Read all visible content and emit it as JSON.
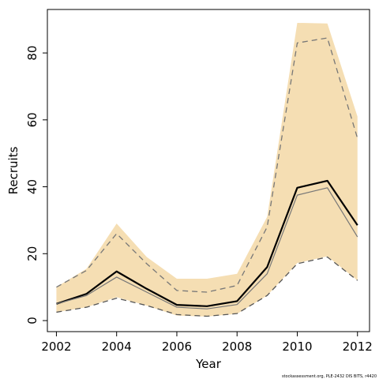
{
  "chart_data": {
    "type": "line",
    "title": "",
    "xlabel": "Year",
    "ylabel": "Recruits",
    "xlim": [
      2001.7,
      2012.4
    ],
    "ylim": [
      -3.3,
      93
    ],
    "x_ticks": [
      2002,
      2004,
      2006,
      2008,
      2010,
      2012
    ],
    "y_ticks": [
      0,
      20,
      40,
      60,
      80
    ],
    "grid": false,
    "legend": "none",
    "x": [
      2002,
      2003,
      2004,
      2005,
      2006,
      2007,
      2008,
      2009,
      2010,
      2011,
      2012
    ],
    "band": {
      "color": "#f5deb3",
      "lower": [
        2.5,
        4.0,
        7.0,
        4.5,
        1.5,
        1.2,
        2.0,
        7.5,
        17.2,
        19.2,
        12.0
      ],
      "upper": [
        10.0,
        15.5,
        29.0,
        19.0,
        12.5,
        12.5,
        14.0,
        31.0,
        89.0,
        88.8,
        61.0
      ]
    },
    "series": [
      {
        "values": [
          5.0,
          8.0,
          14.7,
          9.5,
          4.7,
          4.3,
          5.8,
          16.0,
          39.7,
          41.8,
          28.5
        ],
        "color": "#000000",
        "style": "solid-thick"
      },
      {
        "values": [
          5.0,
          7.5,
          13.0,
          8.5,
          4.0,
          3.5,
          4.8,
          14.0,
          37.5,
          39.7,
          25.0
        ],
        "color": "#777777",
        "style": "solid-thin"
      },
      {
        "values": [
          10.0,
          15.0,
          26.0,
          17.0,
          9.0,
          8.5,
          10.5,
          28.0,
          83.0,
          84.5,
          54.5
        ],
        "color": "#777777",
        "style": "dashed"
      },
      {
        "values": [
          2.5,
          4.0,
          6.7,
          4.5,
          1.8,
          1.3,
          2.1,
          7.5,
          17.0,
          19.0,
          12.0
        ],
        "color": "#555555",
        "style": "dashed"
      }
    ],
    "credit": "stockassessment.org, PLE-2432 DIS BITS, r4420"
  }
}
